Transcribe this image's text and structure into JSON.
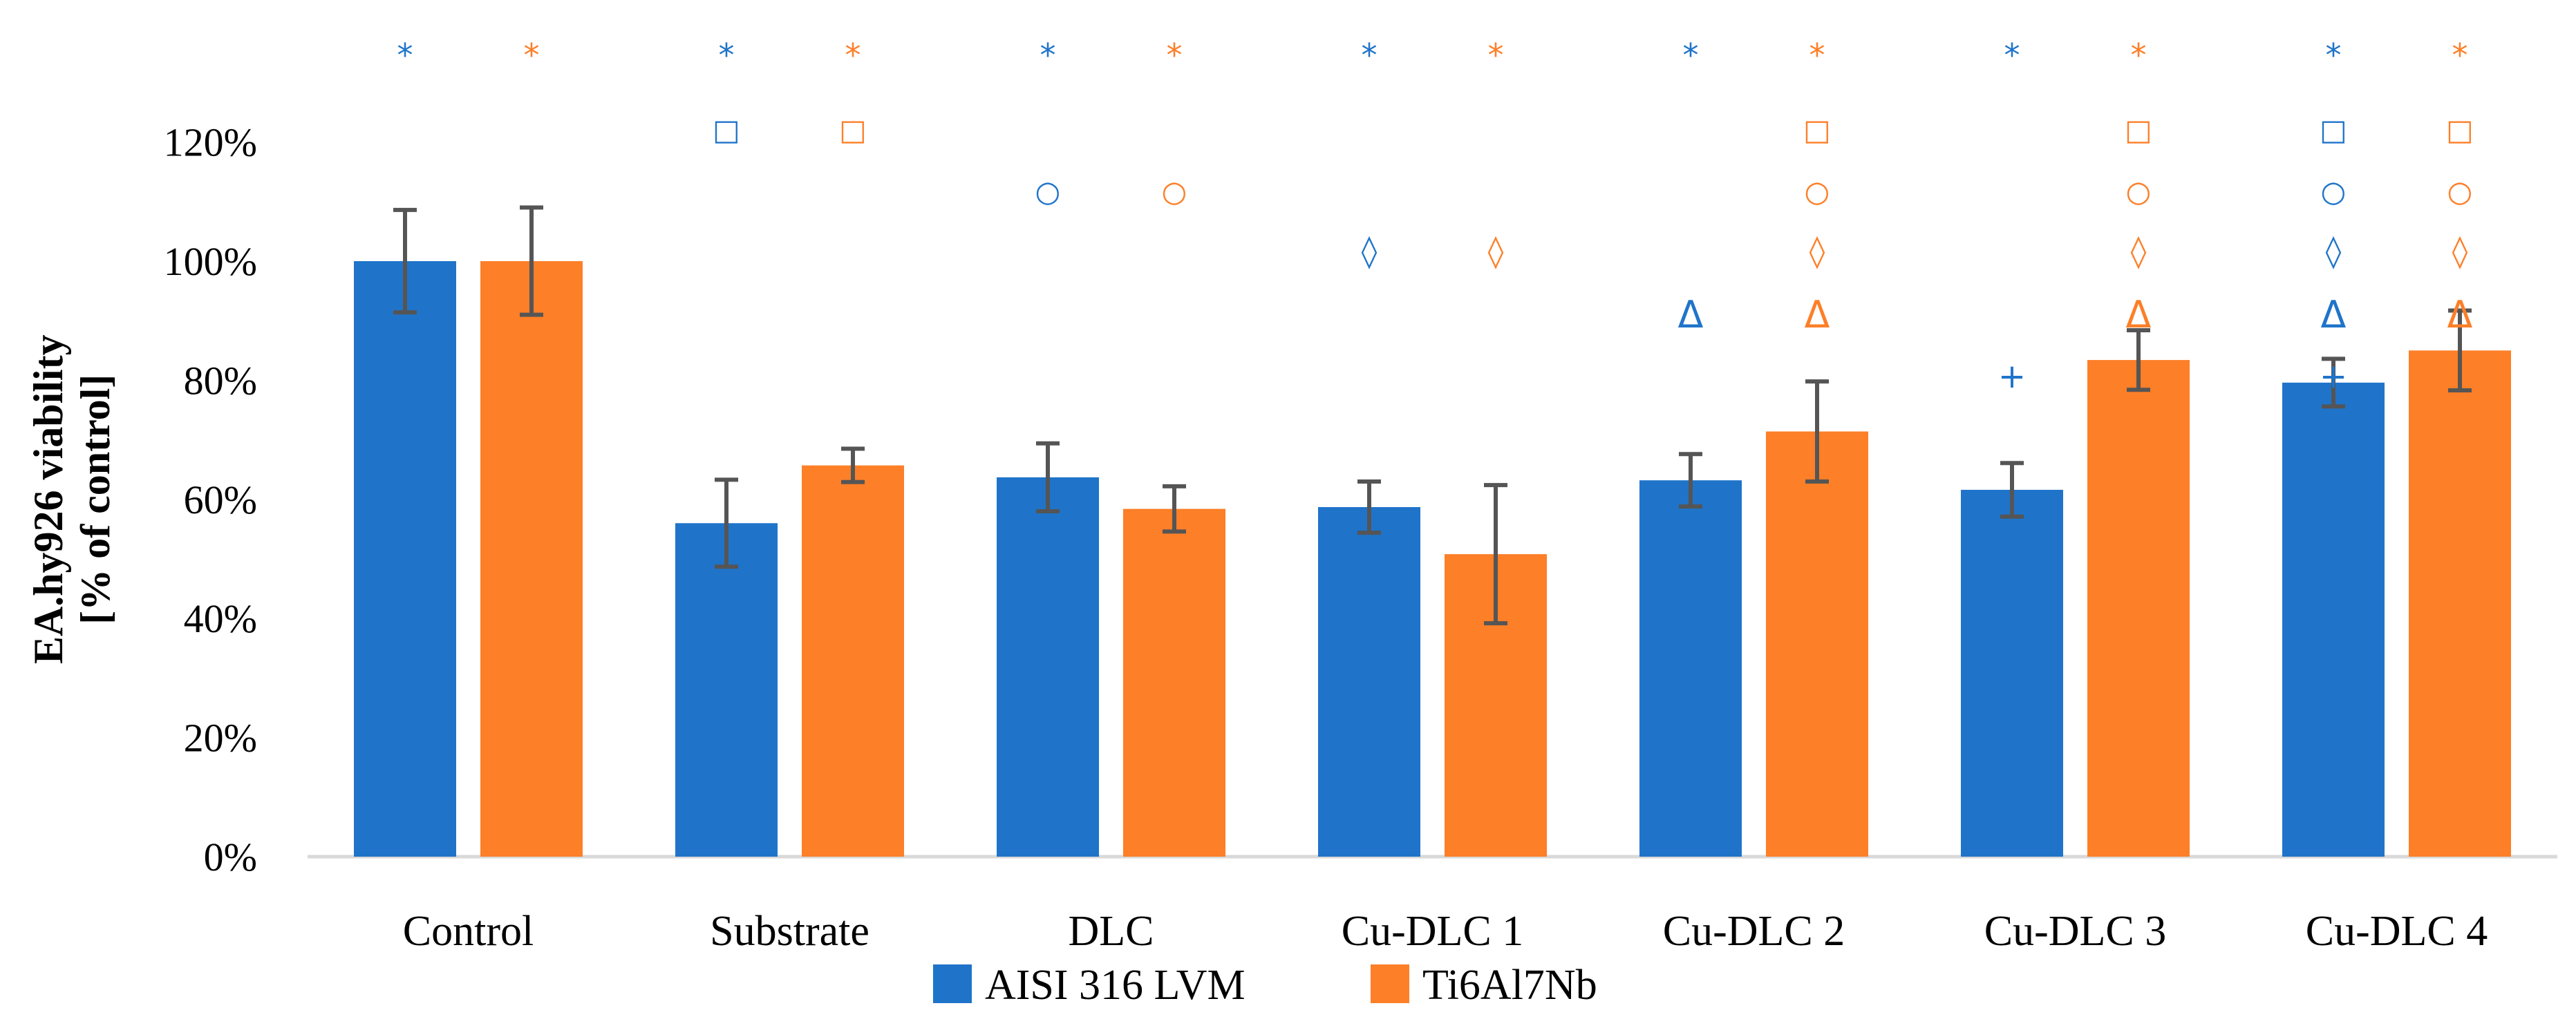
{
  "chart_data": {
    "type": "bar",
    "title": "",
    "xlabel": "",
    "ylabel_lines": [
      "EA.hy926 viability",
      "[% of control]"
    ],
    "ylim": [
      0,
      120
    ],
    "yticks": [
      0,
      20,
      40,
      60,
      80,
      100,
      120
    ],
    "ytick_labels": [
      "0%",
      "20%",
      "40%",
      "60%",
      "80%",
      "100%",
      "120%"
    ],
    "grid": false,
    "legend_position": "bottom-center",
    "categories": [
      "Control",
      "Substrate",
      "DLC",
      "Cu-DLC 1",
      "Cu-DLC 2",
      "Cu-DLC 3",
      "Cu-DLC 4"
    ],
    "series": [
      {
        "name": "AISI 316 LVM",
        "color": "#1f74c9",
        "values": [
          100,
          56,
          63.7,
          58.7,
          63.2,
          61.6,
          79.6
        ],
        "errors": [
          8.6,
          7.3,
          5.7,
          4.3,
          4.4,
          4.5,
          4.0
        ]
      },
      {
        "name": "Ti6Al7Nb",
        "color": "#fd7f28",
        "values": [
          100,
          65.7,
          58.4,
          50.8,
          71.4,
          83.4,
          85.0
        ],
        "errors": [
          9.0,
          2.8,
          3.8,
          11.6,
          8.4,
          5.0,
          6.7
        ]
      }
    ],
    "error_bar_color": "#555555",
    "significance_marks": {
      "symbols": [
        "*",
        "□",
        "○",
        "◊",
        "Δ",
        "+"
      ],
      "AISI 316 LVM": [
        [
          "*"
        ],
        [
          "*",
          "□"
        ],
        [
          "*",
          "○"
        ],
        [
          "*",
          "◊"
        ],
        [
          "*",
          "Δ"
        ],
        [
          "*",
          "+"
        ],
        [
          "*",
          "□",
          "○",
          "◊",
          "Δ",
          "+"
        ]
      ],
      "Ti6Al7Nb": [
        [
          "*"
        ],
        [
          "*",
          "□"
        ],
        [
          "*",
          "○"
        ],
        [
          "*",
          "◊"
        ],
        [
          "*",
          "□",
          "○",
          "◊",
          "Δ"
        ],
        [
          "*",
          "□",
          "○",
          "◊",
          "Δ"
        ],
        [
          "*",
          "□",
          "○",
          "◊",
          "Δ"
        ]
      ]
    }
  }
}
